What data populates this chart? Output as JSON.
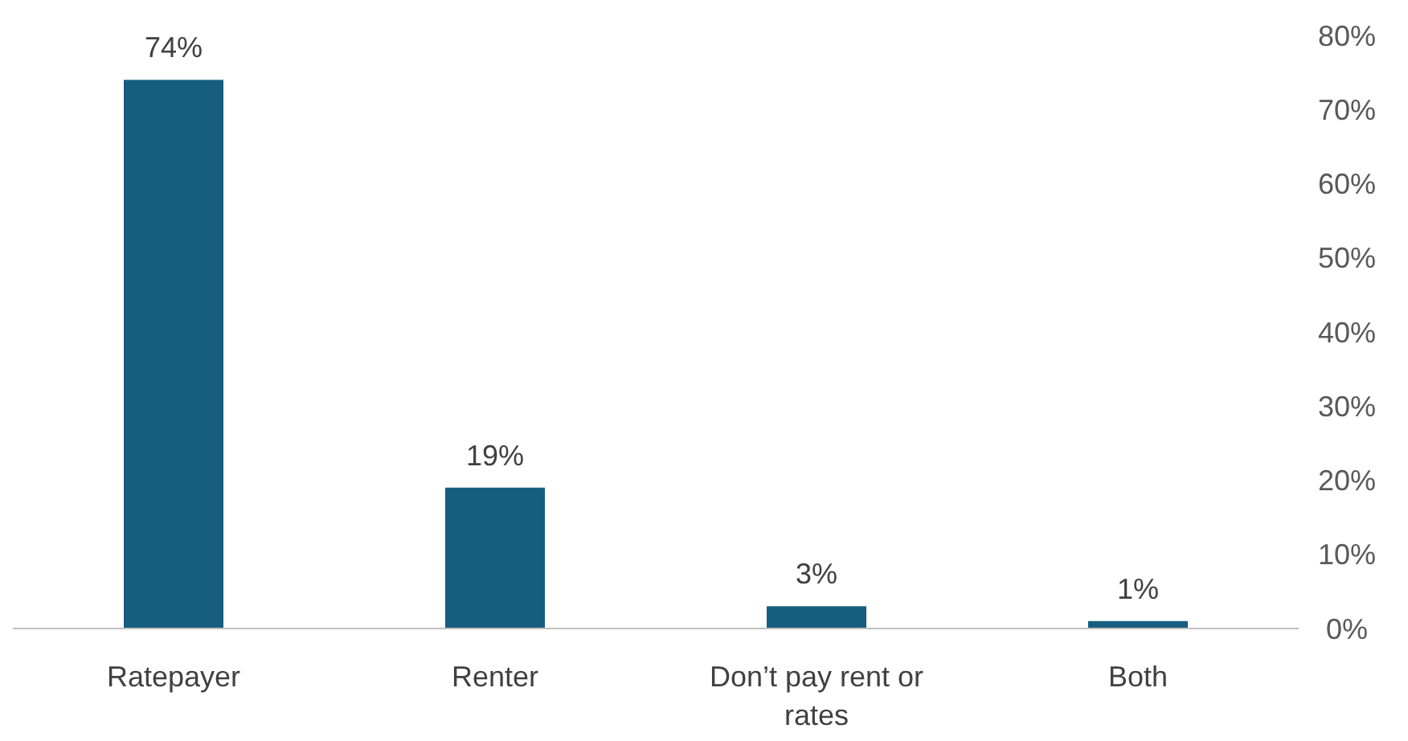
{
  "chart_data": {
    "type": "bar",
    "categories": [
      "Ratepayer",
      "Renter",
      "Don’t pay rent or rates",
      "Both"
    ],
    "values": [
      74,
      19,
      3,
      1
    ],
    "color": "#165e80",
    "value_labels": [
      "74%",
      "19%",
      "3%",
      "1%"
    ],
    "ylim": [
      0,
      80
    ],
    "yticks": [
      {
        "value": 0,
        "label": "0%"
      },
      {
        "value": 10,
        "label": "10%"
      },
      {
        "value": 20,
        "label": "20%"
      },
      {
        "value": 30,
        "label": "30%"
      },
      {
        "value": 40,
        "label": "40%"
      },
      {
        "value": 50,
        "label": "50%"
      },
      {
        "value": 60,
        "label": "60%"
      },
      {
        "value": 70,
        "label": "70%"
      },
      {
        "value": 80,
        "label": "80%"
      }
    ],
    "grid": false
  }
}
